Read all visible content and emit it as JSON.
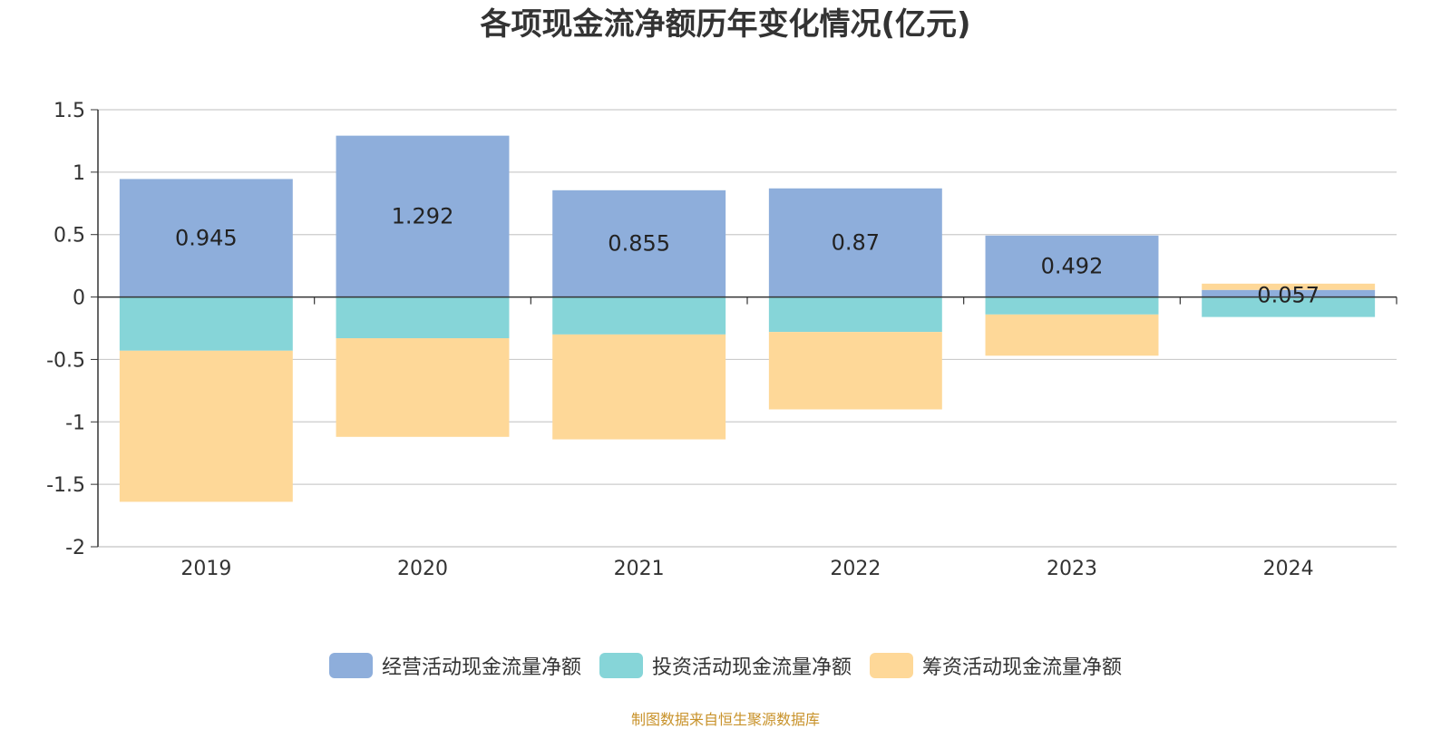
{
  "chart_data": {
    "type": "bar",
    "stacked": true,
    "title": "各项现金流净额历年变化情况(亿元)",
    "categories": [
      "2019",
      "2020",
      "2021",
      "2022",
      "2023",
      "2024"
    ],
    "ylim": [
      -2,
      1.5
    ],
    "yticks": [
      1.5,
      1,
      0.5,
      0,
      -0.5,
      -1,
      -1.5,
      -2
    ],
    "ytick_labels": [
      "1.5",
      "1",
      "0.5",
      "0",
      "-0.5",
      "-1",
      "-1.5",
      "-2"
    ],
    "grid": true,
    "legend_position": "bottom",
    "series": [
      {
        "name": "经营活动现金流量净额",
        "color": "#8eaedb",
        "values": [
          0.945,
          1.292,
          0.855,
          0.87,
          0.492,
          0.057
        ],
        "labels": [
          "0.945",
          "1.292",
          "0.855",
          "0.87",
          "0.492",
          "0.057"
        ]
      },
      {
        "name": "投资活动现金流量净额",
        "color": "#86d5d8",
        "values": [
          -0.43,
          -0.33,
          -0.3,
          -0.28,
          -0.14,
          -0.16
        ]
      },
      {
        "name": "筹资活动现金流量净额",
        "color": "#fed898",
        "values": [
          -1.21,
          -0.79,
          -0.84,
          -0.62,
          -0.33,
          0.05
        ]
      }
    ],
    "source": "制图数据来自恒生聚源数据库"
  }
}
